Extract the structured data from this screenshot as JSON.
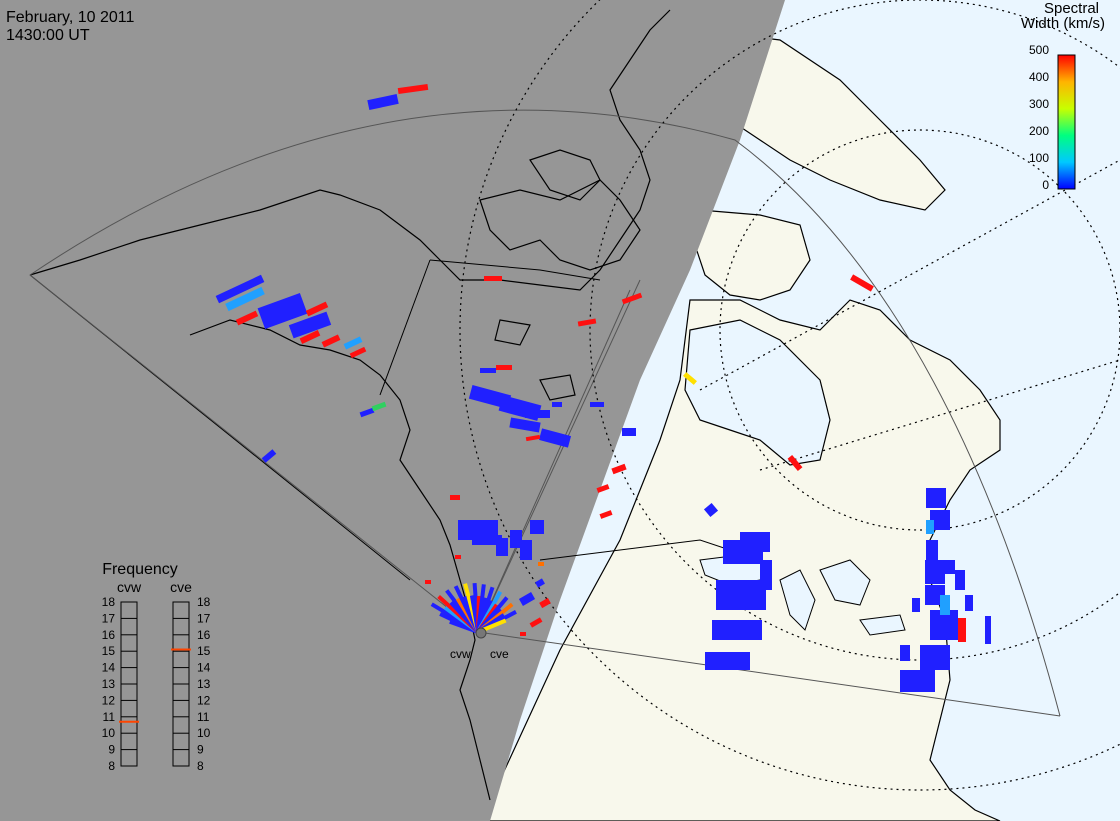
{
  "header": {
    "date": "February, 10 2011",
    "time": "1430:00 UT"
  },
  "colorbar": {
    "title_line1": "Spectral",
    "title_line2": "Width (km/s)",
    "ticks": [
      "500",
      "400",
      "300",
      "200",
      "100",
      "0"
    ],
    "range": [
      0,
      500
    ],
    "colors": [
      "#0000ff",
      "#00c8ff",
      "#00ff80",
      "#c8ff00",
      "#ffb400",
      "#ff0000"
    ]
  },
  "frequency_panel": {
    "title": "Frequency",
    "radars": [
      {
        "code": "cvw",
        "selected_mhz": 10.7,
        "marker_color": "#ff4500"
      },
      {
        "code": "cve",
        "selected_mhz": 15.1,
        "marker_color": "#ff4500"
      }
    ],
    "ticks": [
      "18",
      "17",
      "16",
      "15",
      "14",
      "13",
      "12",
      "11",
      "10",
      "9",
      "8"
    ]
  },
  "radar_sites": [
    "cvw",
    "cve"
  ],
  "map": {
    "night_color": "#969696",
    "day_land_color": "#f8f8ec",
    "day_ocean_color": "#eaf6ff",
    "coast_color": "#000000"
  }
}
